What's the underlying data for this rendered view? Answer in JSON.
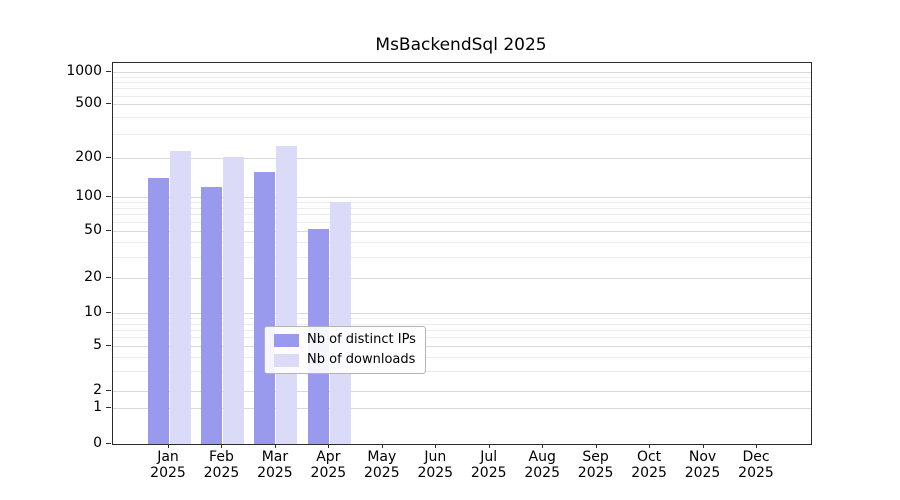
{
  "title": "MsBackendSql 2025",
  "chart_data": {
    "type": "bar",
    "title": "MsBackendSql 2025",
    "x_categories": [
      "Jan",
      "Feb",
      "Mar",
      "Apr",
      "May",
      "Jun",
      "Jul",
      "Aug",
      "Sep",
      "Oct",
      "Nov",
      "Dec"
    ],
    "x_year": "2025",
    "series": [
      {
        "name": "Nb of distinct IPs",
        "color": "#9999ee",
        "values": [
          140,
          120,
          155,
          52,
          null,
          null,
          null,
          null,
          null,
          null,
          null,
          null
        ]
      },
      {
        "name": "Nb of downloads",
        "color": "#dbdbf8",
        "values": [
          225,
          205,
          245,
          90,
          null,
          null,
          null,
          null,
          null,
          null,
          null,
          null
        ]
      }
    ],
    "y_ticks": [
      0,
      1,
      2,
      5,
      10,
      20,
      50,
      100,
      200,
      500,
      1000
    ],
    "y_scale": "symlog",
    "ylim": [
      0,
      1200
    ],
    "grid": true,
    "legend": {
      "position": "lower-center",
      "labels": [
        "Nb of distinct IPs",
        "Nb of downloads"
      ]
    }
  },
  "colors": {
    "grid_major": "#d9d9d9",
    "grid_minor": "#ececec",
    "spine": "#2b2b2b",
    "background": "#ffffff"
  }
}
